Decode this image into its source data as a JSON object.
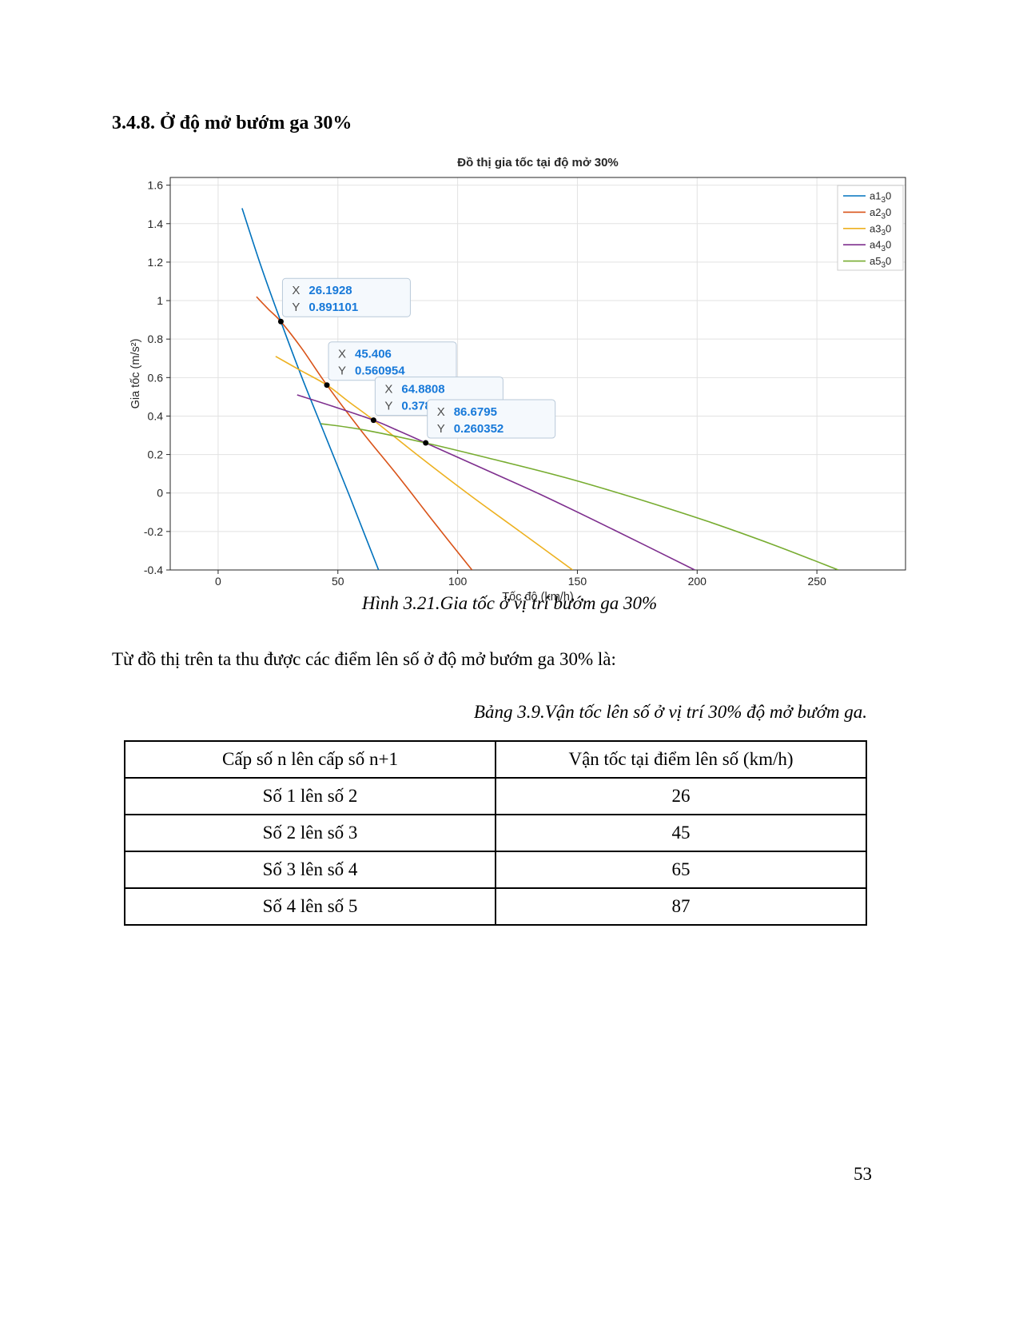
{
  "page": {
    "heading": "3.4.8. Ở độ mở bướm ga 30%",
    "figure_caption": "Hình 3.21.Gia tốc ở vị trí bướm ga 30%",
    "paragraph": "Từ đồ thị trên ta thu được các điểm lên số ở độ mở bướm ga 30% là:",
    "table_caption": "Bảng 3.9.Vận tốc lên số ở vị trí 30% độ mở bướm ga.",
    "page_number": "53"
  },
  "chart_data": {
    "type": "line",
    "title": "Đồ thị gia tốc tại độ mở 30%",
    "xlabel": "Tốc độ (km/h)",
    "ylabel": "Gia tốc (m/s²)",
    "xlim": [
      -20,
      287
    ],
    "ylim": [
      -0.4,
      1.64
    ],
    "xticks": [
      0,
      50,
      100,
      150,
      200,
      250
    ],
    "yticks": [
      -0.4,
      -0.2,
      0,
      0.2,
      0.4,
      0.6,
      0.8,
      1,
      1.2,
      1.4,
      1.6
    ],
    "grid": true,
    "legend_position": "top-right",
    "series": [
      {
        "name": "a1_30",
        "label_base": "a1",
        "label_sub": "3",
        "label_tail": "0",
        "color": "#0072BD",
        "points": [
          [
            10,
            1.48
          ],
          [
            18,
            1.175
          ],
          [
            26.1928,
            0.891101
          ],
          [
            35,
            0.6
          ],
          [
            45,
            0.29
          ],
          [
            55,
            -0.02
          ],
          [
            61,
            -0.21
          ],
          [
            67,
            -0.4
          ]
        ]
      },
      {
        "name": "a2_30",
        "label_base": "a2",
        "label_sub": "3",
        "label_tail": "0",
        "color": "#D95319",
        "points": [
          [
            16,
            1.02
          ],
          [
            21,
            0.955
          ],
          [
            26.1928,
            0.891101
          ],
          [
            35,
            0.75
          ],
          [
            45.406,
            0.560954
          ],
          [
            60,
            0.32
          ],
          [
            75,
            0.09
          ],
          [
            90,
            -0.15
          ],
          [
            106,
            -0.4
          ]
        ]
      },
      {
        "name": "a3_30",
        "label_base": "a3",
        "label_sub": "3",
        "label_tail": "0",
        "color": "#EDB120",
        "points": [
          [
            24,
            0.71
          ],
          [
            34,
            0.64
          ],
          [
            45.406,
            0.560954
          ],
          [
            55,
            0.47
          ],
          [
            64.8808,
            0.378545
          ],
          [
            85,
            0.18
          ],
          [
            105,
            -0.01
          ],
          [
            126,
            -0.2
          ],
          [
            148,
            -0.4
          ]
        ]
      },
      {
        "name": "a4_30",
        "label_base": "a4",
        "label_sub": "3",
        "label_tail": "0",
        "color": "#7E2F8E",
        "points": [
          [
            33,
            0.51
          ],
          [
            48,
            0.45
          ],
          [
            64.8808,
            0.378545
          ],
          [
            75,
            0.325
          ],
          [
            86.6795,
            0.260352
          ],
          [
            110,
            0.13
          ],
          [
            135,
            -0.01
          ],
          [
            165,
            -0.19
          ],
          [
            199,
            -0.4
          ]
        ]
      },
      {
        "name": "a5_30",
        "label_base": "a5",
        "label_sub": "3",
        "label_tail": "0",
        "color": "#77AC30",
        "points": [
          [
            43,
            0.36
          ],
          [
            60,
            0.33
          ],
          [
            86.6795,
            0.260352
          ],
          [
            115,
            0.175
          ],
          [
            145,
            0.08
          ],
          [
            175,
            -0.03
          ],
          [
            205,
            -0.15
          ],
          [
            232,
            -0.27
          ],
          [
            259,
            -0.4
          ]
        ]
      }
    ],
    "datatips": [
      {
        "x": 26.1928,
        "y": 0.891101,
        "x_text": "26.1928",
        "y_text": "0.891101"
      },
      {
        "x": 45.406,
        "y": 0.560954,
        "x_text": "45.406",
        "y_text": "0.560954"
      },
      {
        "x": 64.8808,
        "y": 0.378545,
        "x_text": "64.8808",
        "y_text": "0.378545"
      },
      {
        "x": 86.6795,
        "y": 0.260352,
        "x_text": "86.6795",
        "y_text": "0.260352"
      }
    ],
    "colors": {
      "datatip_value": "#1779d9",
      "datatip_label": "#4d4d4d",
      "datatip_bg": "#f5f9fd",
      "datatip_border": "#b9c9d9",
      "axis": "#262626",
      "grid": "#e2e2e2"
    }
  },
  "table": {
    "headers": [
      "Cấp số n lên cấp số n+1",
      "Vận tốc tại điểm lên số (km/h)"
    ],
    "rows": [
      [
        "Số 1 lên số 2",
        "26"
      ],
      [
        "Số 2 lên số 3",
        "45"
      ],
      [
        "Số 3 lên số 4",
        "65"
      ],
      [
        "Số 4 lên số 5",
        "87"
      ]
    ]
  }
}
